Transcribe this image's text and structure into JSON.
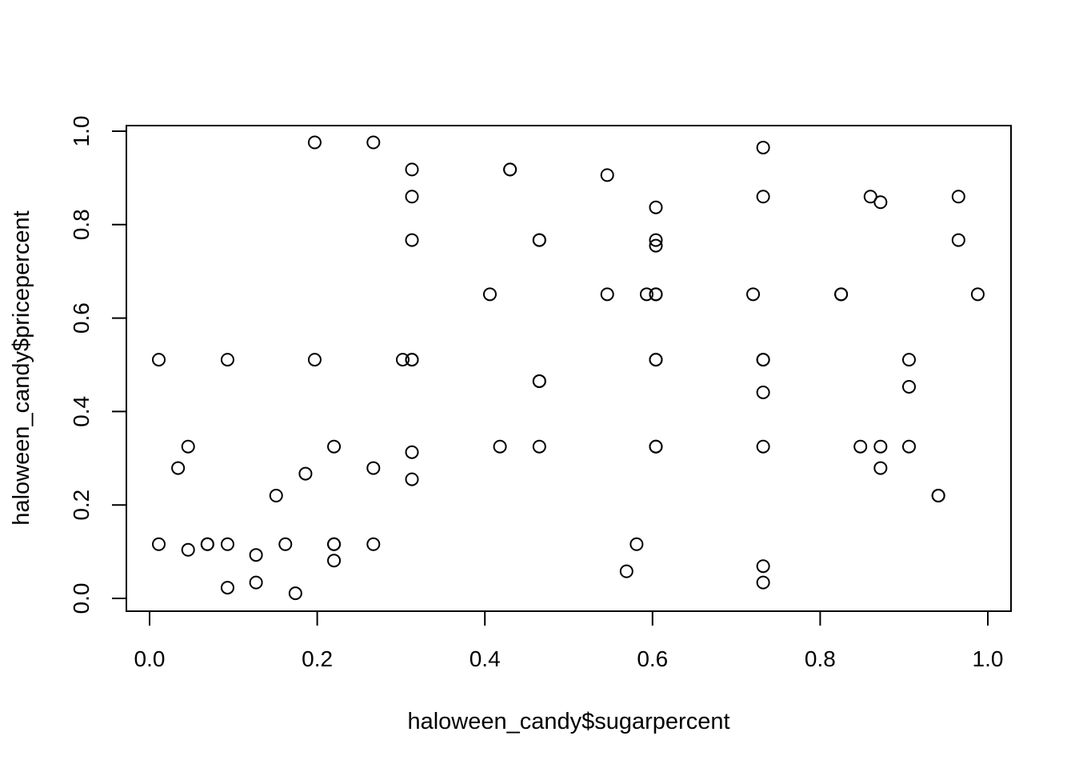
{
  "chart_data": {
    "type": "scatter",
    "title": "",
    "xlabel": "haloween_candy$sugarpercent",
    "ylabel": "haloween_candy$pricepercent",
    "xlim": [
      0,
      1
    ],
    "ylim": [
      0,
      1
    ],
    "x_ticks": [
      "0.0",
      "0.2",
      "0.4",
      "0.6",
      "0.8",
      "1.0"
    ],
    "y_ticks": [
      "0.0",
      "0.2",
      "0.4",
      "0.6",
      "0.8",
      "1.0"
    ],
    "grid": false,
    "legend": "none",
    "marker": "open-circle",
    "point_color": "#000000",
    "points": [
      {
        "x": 0.197,
        "y": 0.976
      },
      {
        "x": 0.267,
        "y": 0.976
      },
      {
        "x": 0.732,
        "y": 0.965
      },
      {
        "x": 0.313,
        "y": 0.918
      },
      {
        "x": 0.43,
        "y": 0.918
      },
      {
        "x": 0.43,
        "y": 0.918
      },
      {
        "x": 0.546,
        "y": 0.906
      },
      {
        "x": 0.313,
        "y": 0.86
      },
      {
        "x": 0.732,
        "y": 0.86
      },
      {
        "x": 0.86,
        "y": 0.86
      },
      {
        "x": 0.965,
        "y": 0.86
      },
      {
        "x": 0.872,
        "y": 0.848
      },
      {
        "x": 0.604,
        "y": 0.837
      },
      {
        "x": 0.313,
        "y": 0.767
      },
      {
        "x": 0.465,
        "y": 0.767
      },
      {
        "x": 0.465,
        "y": 0.767
      },
      {
        "x": 0.604,
        "y": 0.767
      },
      {
        "x": 0.965,
        "y": 0.767
      },
      {
        "x": 0.604,
        "y": 0.755
      },
      {
        "x": 0.406,
        "y": 0.651
      },
      {
        "x": 0.546,
        "y": 0.651
      },
      {
        "x": 0.593,
        "y": 0.651
      },
      {
        "x": 0.604,
        "y": 0.651
      },
      {
        "x": 0.604,
        "y": 0.651
      },
      {
        "x": 0.72,
        "y": 0.651
      },
      {
        "x": 0.825,
        "y": 0.651
      },
      {
        "x": 0.825,
        "y": 0.651
      },
      {
        "x": 0.988,
        "y": 0.651
      },
      {
        "x": 0.011,
        "y": 0.511
      },
      {
        "x": 0.093,
        "y": 0.511
      },
      {
        "x": 0.197,
        "y": 0.511
      },
      {
        "x": 0.302,
        "y": 0.511
      },
      {
        "x": 0.313,
        "y": 0.511
      },
      {
        "x": 0.313,
        "y": 0.511
      },
      {
        "x": 0.604,
        "y": 0.511
      },
      {
        "x": 0.604,
        "y": 0.511
      },
      {
        "x": 0.732,
        "y": 0.511
      },
      {
        "x": 0.732,
        "y": 0.511
      },
      {
        "x": 0.906,
        "y": 0.511
      },
      {
        "x": 0.465,
        "y": 0.465
      },
      {
        "x": 0.465,
        "y": 0.465
      },
      {
        "x": 0.906,
        "y": 0.453
      },
      {
        "x": 0.732,
        "y": 0.441
      },
      {
        "x": 0.046,
        "y": 0.325
      },
      {
        "x": 0.22,
        "y": 0.325
      },
      {
        "x": 0.418,
        "y": 0.325
      },
      {
        "x": 0.465,
        "y": 0.325
      },
      {
        "x": 0.604,
        "y": 0.325
      },
      {
        "x": 0.604,
        "y": 0.325
      },
      {
        "x": 0.732,
        "y": 0.325
      },
      {
        "x": 0.848,
        "y": 0.325
      },
      {
        "x": 0.872,
        "y": 0.325
      },
      {
        "x": 0.906,
        "y": 0.325
      },
      {
        "x": 0.313,
        "y": 0.313
      },
      {
        "x": 0.034,
        "y": 0.279
      },
      {
        "x": 0.267,
        "y": 0.279
      },
      {
        "x": 0.872,
        "y": 0.279
      },
      {
        "x": 0.186,
        "y": 0.267
      },
      {
        "x": 0.313,
        "y": 0.255
      },
      {
        "x": 0.151,
        "y": 0.22
      },
      {
        "x": 0.941,
        "y": 0.22
      },
      {
        "x": 0.941,
        "y": 0.22
      },
      {
        "x": 0.011,
        "y": 0.116
      },
      {
        "x": 0.069,
        "y": 0.116
      },
      {
        "x": 0.069,
        "y": 0.116
      },
      {
        "x": 0.093,
        "y": 0.116
      },
      {
        "x": 0.162,
        "y": 0.116
      },
      {
        "x": 0.22,
        "y": 0.116
      },
      {
        "x": 0.22,
        "y": 0.116
      },
      {
        "x": 0.267,
        "y": 0.116
      },
      {
        "x": 0.581,
        "y": 0.116
      },
      {
        "x": 0.046,
        "y": 0.104
      },
      {
        "x": 0.127,
        "y": 0.093
      },
      {
        "x": 0.22,
        "y": 0.081
      },
      {
        "x": 0.732,
        "y": 0.069
      },
      {
        "x": 0.569,
        "y": 0.058
      },
      {
        "x": 0.127,
        "y": 0.034
      },
      {
        "x": 0.732,
        "y": 0.034
      },
      {
        "x": 0.093,
        "y": 0.023
      },
      {
        "x": 0.174,
        "y": 0.011
      }
    ]
  }
}
